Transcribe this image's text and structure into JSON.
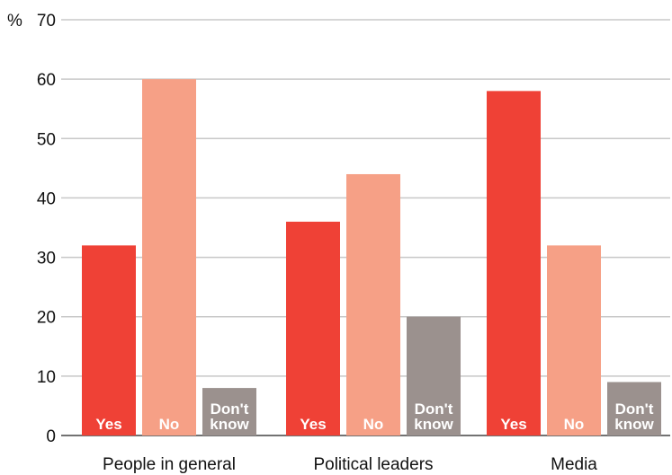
{
  "chart_data": {
    "type": "bar",
    "ylabel": "%",
    "ylim": [
      0,
      70
    ],
    "yticks": [
      0,
      10,
      20,
      30,
      40,
      50,
      60,
      70
    ],
    "grid": true,
    "categories": [
      "People in general",
      "Political leaders",
      "Media"
    ],
    "series": [
      {
        "name": "Yes",
        "label_lines": [
          "Yes"
        ],
        "color": "#ef4136",
        "values": [
          32,
          36,
          58
        ]
      },
      {
        "name": "No",
        "label_lines": [
          "No"
        ],
        "color": "#f6a086",
        "values": [
          60,
          44,
          32
        ]
      },
      {
        "name": "Don't know",
        "label_lines": [
          "Don't",
          "know"
        ],
        "color": "#9b918e",
        "values": [
          8,
          20,
          9
        ]
      }
    ]
  }
}
